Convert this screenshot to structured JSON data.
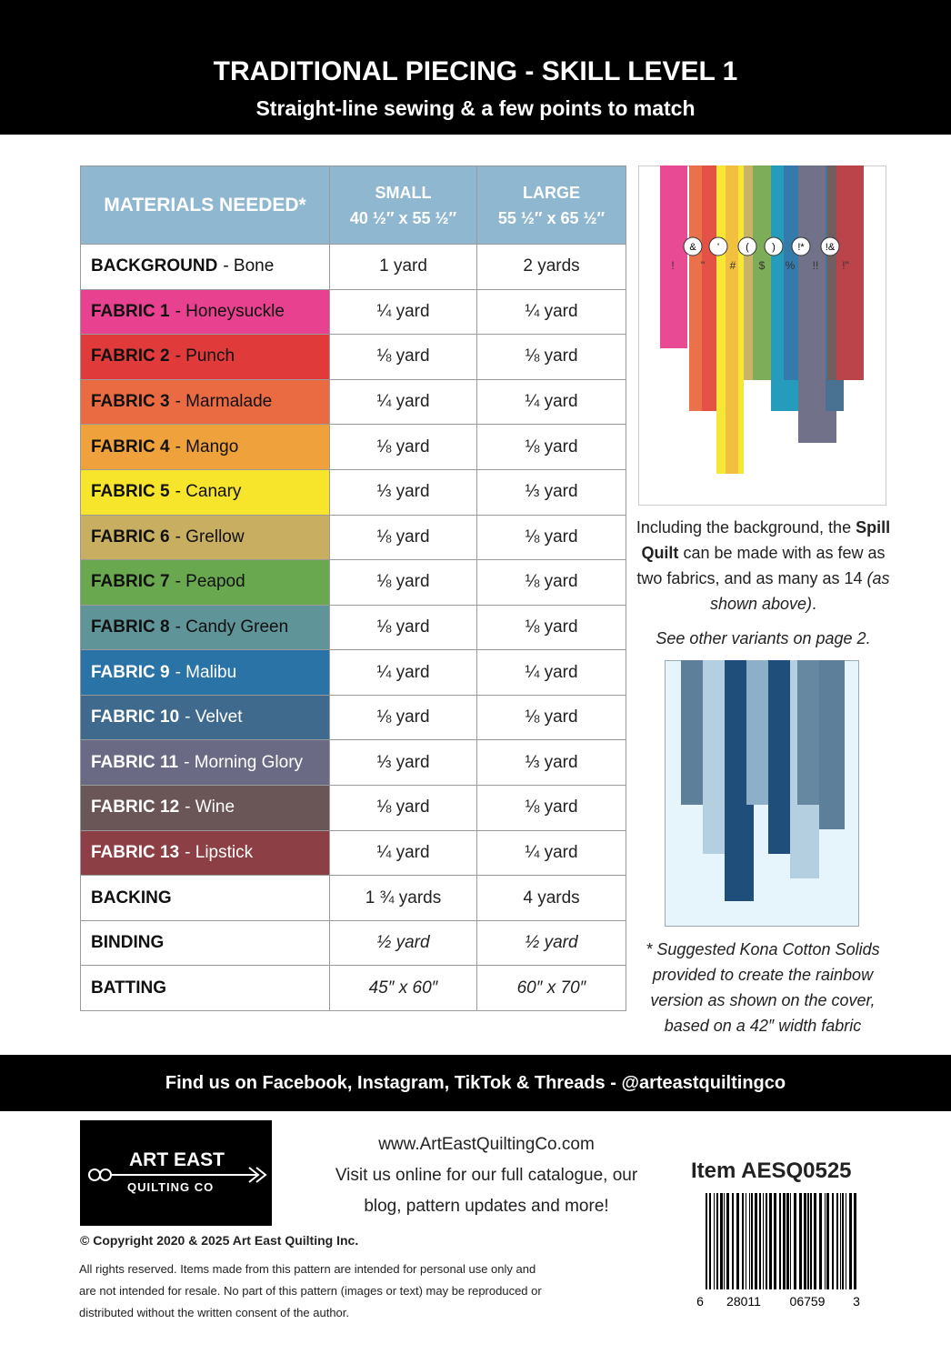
{
  "header": {
    "title": "TRADITIONAL PIECING - SKILL LEVEL 1",
    "subtitle": "Straight-line sewing & a few points to match"
  },
  "table": {
    "columns": [
      {
        "title": "MATERIALS NEEDED*"
      },
      {
        "title": "SMALL",
        "size": "40 ½″ x 55 ½″"
      },
      {
        "title": "LARGE",
        "size": "55 ½″ x 65 ½″"
      }
    ],
    "rows": [
      {
        "name": "BACKGROUND",
        "desc": "- Bone",
        "small": "1 yard",
        "large": "2 yards",
        "color": "#ffffff"
      },
      {
        "name": "FABRIC 1",
        "desc": "- Honeysuckle",
        "small": "¼ yard",
        "large": "¼ yard",
        "color": "#e8418f"
      },
      {
        "name": "FABRIC 2",
        "desc": "- Punch",
        "small": "⅛ yard",
        "large": "⅛ yard",
        "color": "#e03a3a"
      },
      {
        "name": "FABRIC 3",
        "desc": "- Marmalade",
        "small": "¼ yard",
        "large": "¼ yard",
        "color": "#ea6a42"
      },
      {
        "name": "FABRIC 4",
        "desc": "- Mango",
        "small": "⅛ yard",
        "large": "⅛ yard",
        "color": "#efa13b"
      },
      {
        "name": "FABRIC 5",
        "desc": "- Canary",
        "small": "⅓ yard",
        "large": "⅓ yard",
        "color": "#f6e52b"
      },
      {
        "name": "FABRIC 6",
        "desc": "- Grellow",
        "small": "⅛ yard",
        "large": "⅛ yard",
        "color": "#c8ae60"
      },
      {
        "name": "FABRIC 7",
        "desc": "- Peapod",
        "small": "⅛ yard",
        "large": "⅛ yard",
        "color": "#6aa84f"
      },
      {
        "name": "FABRIC 8",
        "desc": "- Candy Green",
        "small": "⅛ yard",
        "large": "⅛ yard",
        "color": "#5f9499"
      },
      {
        "name": "FABRIC 9",
        "desc": "- Malibu",
        "small": "¼ yard",
        "large": "¼ yard",
        "color": "#2a73a6",
        "text": "#ffffff"
      },
      {
        "name": "FABRIC 10",
        "desc": "- Velvet",
        "small": "⅛ yard",
        "large": "⅛ yard",
        "color": "#3f6a8d",
        "text": "#ffffff"
      },
      {
        "name": "FABRIC 11",
        "desc": "- Morning Glory",
        "small": "⅓ yard",
        "large": "⅓ yard",
        "color": "#6a6a84",
        "text": "#ffffff"
      },
      {
        "name": "FABRIC 12",
        "desc": "- Wine",
        "small": "⅛ yard",
        "large": "⅛ yard",
        "color": "#6b5657",
        "text": "#ffffff"
      },
      {
        "name": "FABRIC 13",
        "desc": "- Lipstick",
        "small": "¼ yard",
        "large": "¼ yard",
        "color": "#8c3f44",
        "text": "#ffffff"
      },
      {
        "name": "BACKING",
        "small": "1 ¾ yards",
        "large": "4 yards",
        "color": "#ffffff"
      },
      {
        "name": "BINDING",
        "small": "½ yard",
        "large": "½ yard",
        "color": "#ffffff",
        "italic": true
      },
      {
        "name": "BATTING",
        "small": "45″ x 60″",
        "large": "60″ x 70″",
        "color": "#ffffff",
        "italic": true
      }
    ]
  },
  "quilt_labels": {
    "top": [
      "&",
      "'",
      "(",
      ")",
      "!*",
      "!&"
    ],
    "bottom": [
      "!",
      "\"",
      "#",
      "$",
      "%",
      "!!",
      "!\""
    ]
  },
  "caption": [
    {
      "text": "Including the background, the "
    },
    {
      "text": "Spill Quilt",
      "style": "bold"
    },
    {
      "text": " can be made with as few as two fabrics, and as many as 14 "
    },
    {
      "text": "(as shown above)",
      "style": "italic"
    },
    {
      "text": "."
    }
  ],
  "variants_note": "See other variants on page 2.",
  "footnote": [
    "* Suggested Kona Cotton Solids",
    "provided to create the rainbow",
    "version as shown on the cover,",
    "based on a 42″ width fabric"
  ],
  "social": "Find us on Facebook, Instagram, TikTok & Threads - @arteastquiltingco",
  "logo": {
    "line1": "ART EAST",
    "line2": "QUILTING CO"
  },
  "website": {
    "url": "www.ArtEastQuiltingCo.com",
    "lines": [
      "Visit us online for our full catalogue, our",
      "blog, pattern updates and more!"
    ]
  },
  "item": "Item AESQ0525",
  "barcode_digits": [
    "6",
    "28011",
    "06759",
    "3"
  ],
  "copyright": "© Copyright 2020 & 2025 Art East Quilting Inc.",
  "rights": [
    "All rights reserved. Items made from this pattern are intended for personal use only and",
    "are not intended for resale. No part of this pattern (images or text) may be reproduced or",
    "distributed without the written consent of the author."
  ]
}
